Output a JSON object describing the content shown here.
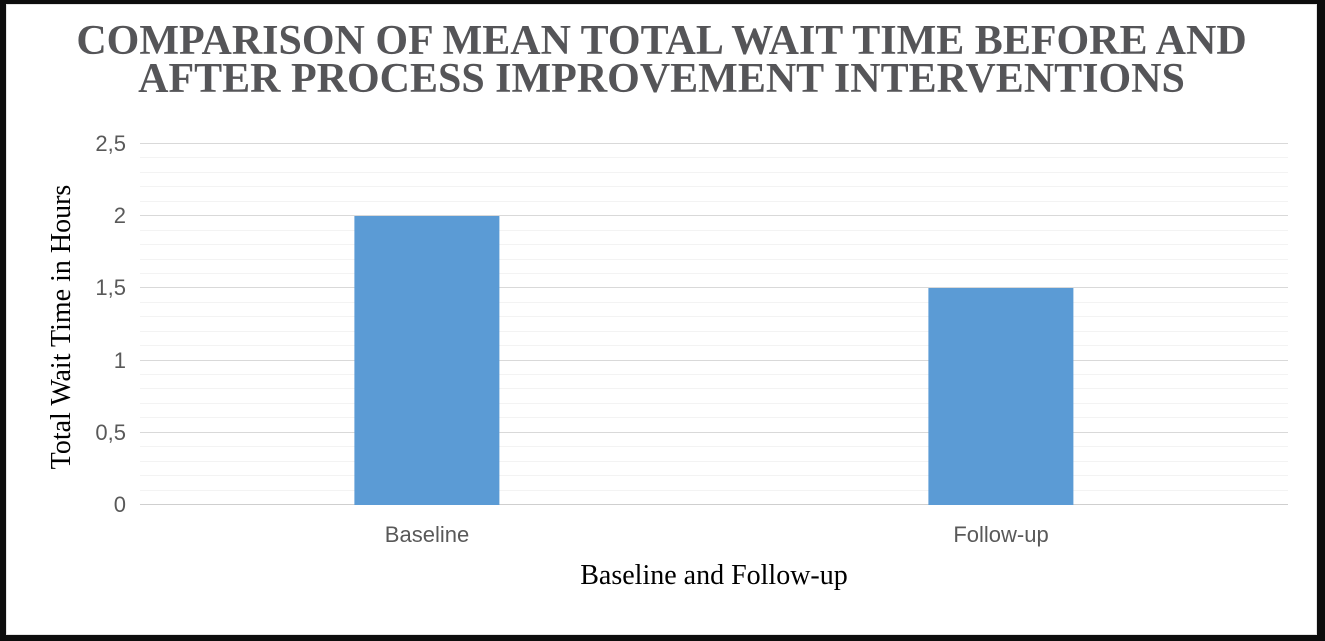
{
  "chart_data": {
    "type": "bar",
    "title": "COMPARISON OF MEAN TOTAL WAIT TIME BEFORE AND AFTER PROCESS IMPROVEMENT INTERVENTIONS",
    "title_lines": [
      "COMPARISON OF MEAN TOTAL WAIT TIME BEFORE AND",
      "AFTER PROCESS IMPROVEMENT INTERVENTIONS"
    ],
    "categories": [
      "Baseline",
      "Follow-up"
    ],
    "values": [
      2,
      1.5
    ],
    "xlabel": "Baseline and Follow-up",
    "ylabel": "Total Wait Time in Hours",
    "ylim": [
      0,
      2.5
    ],
    "y_major_step": 0.5,
    "y_minor_step": 0.1,
    "y_tick_labels": [
      "0",
      "0,5",
      "1",
      "1,5",
      "2",
      "2,5"
    ],
    "decimal_separator": ",",
    "grid": "major-and-minor-horizontal",
    "legend": "none",
    "colors": {
      "bar": "#5b9bd5",
      "major_grid": "#d9d9d9",
      "minor_grid": "#f3f3f3",
      "tick_text": "#595959",
      "title_text": "#555558",
      "axis_label_text": "#000000",
      "frame": "#0d0d0d"
    }
  }
}
